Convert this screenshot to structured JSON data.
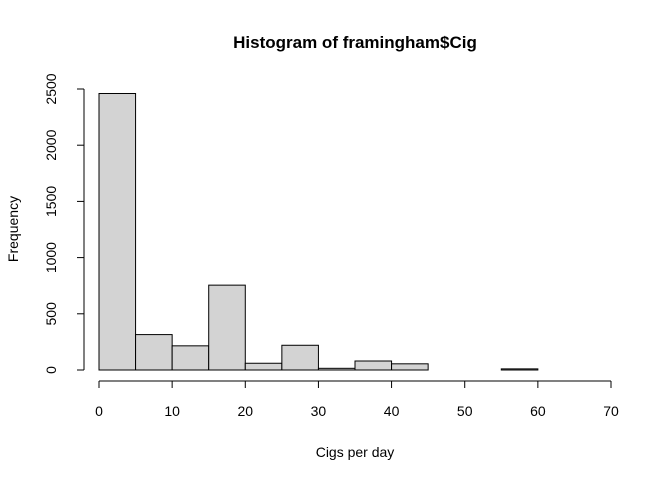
{
  "chart_data": {
    "type": "bar",
    "title": "Histogram of framingham$Cig",
    "xlabel": "Cigs per day",
    "ylabel": "Frequency",
    "xlim": [
      0,
      70
    ],
    "ylim": [
      0,
      2500
    ],
    "x_ticks": [
      0,
      10,
      20,
      30,
      40,
      50,
      60,
      70
    ],
    "y_ticks": [
      0,
      500,
      1000,
      1500,
      2000,
      2500
    ],
    "bin_edges": [
      0,
      5,
      10,
      15,
      20,
      25,
      30,
      35,
      40,
      45,
      50,
      55,
      60,
      65,
      70
    ],
    "values": [
      2460,
      315,
      215,
      755,
      60,
      220,
      15,
      80,
      55,
      0,
      0,
      10,
      0,
      0
    ],
    "bar_fill": "#d3d3d3",
    "bar_stroke": "#000000",
    "grid": false
  }
}
